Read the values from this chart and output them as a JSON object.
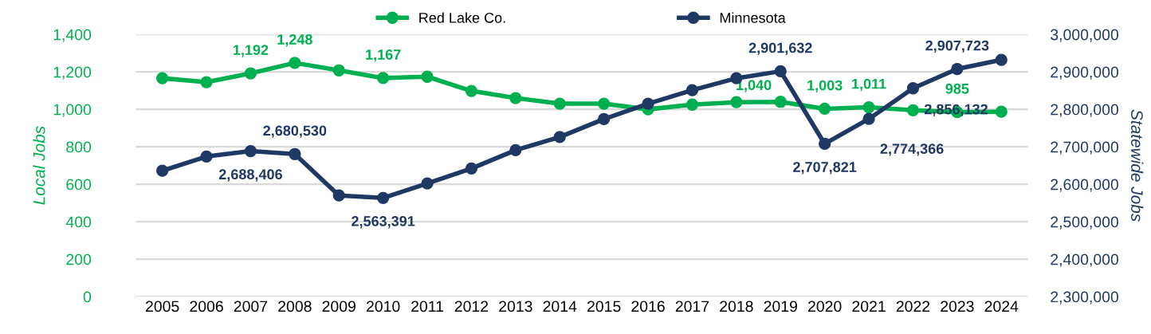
{
  "chart_data": {
    "type": "line",
    "categories": [
      "2005",
      "2006",
      "2007",
      "2008",
      "2009",
      "2010",
      "2011",
      "2012",
      "2013",
      "2014",
      "2015",
      "2016",
      "2017",
      "2018",
      "2019",
      "2020",
      "2021",
      "2022",
      "2023",
      "2024"
    ],
    "series": [
      {
        "name": "Red Lake Co.",
        "color": "#00b050",
        "values": [
          1166,
          1145,
          1192,
          1248,
          1208,
          1167,
          1174,
          1098,
          1060,
          1030,
          1030,
          1000,
          1025,
          1038,
          1040,
          1003,
          1011,
          995,
          985,
          987
        ],
        "value_labels": [
          null,
          null,
          "1,192",
          "1,248",
          null,
          "1,167",
          null,
          null,
          null,
          null,
          null,
          null,
          null,
          null,
          "1,040",
          "1,003",
          "1,011",
          null,
          "985",
          null
        ]
      },
      {
        "name": "Minnesota",
        "color": "#203864",
        "axis": "y2",
        "values": [
          2636000,
          2674000,
          2688406,
          2680530,
          2570000,
          2563391,
          2602000,
          2642000,
          2691000,
          2726000,
          2774000,
          2815000,
          2851000,
          2883000,
          2901632,
          2707821,
          2774366,
          2856132,
          2907723,
          2932000
        ],
        "value_labels": [
          null,
          null,
          "2,688,406",
          "2,680,530",
          null,
          "2,563,391",
          null,
          null,
          null,
          null,
          null,
          null,
          null,
          null,
          "2,901,632",
          "2,707,821",
          "2,774,366",
          "2,856,132",
          "2,907,723",
          null
        ]
      }
    ],
    "ylabel": "Local Jobs",
    "y2label": "Statewide Jobs",
    "ylim": [
      0,
      1400
    ],
    "yticks": [
      {
        "value": 0,
        "label": "0"
      },
      {
        "value": 200,
        "label": "200"
      },
      {
        "value": 400,
        "label": "400"
      },
      {
        "value": 600,
        "label": "600"
      },
      {
        "value": 800,
        "label": "800"
      },
      {
        "value": 1000,
        "label": "1,000"
      },
      {
        "value": 1200,
        "label": "1,200"
      },
      {
        "value": 1400,
        "label": "1,400"
      }
    ],
    "y2lim": [
      2300000,
      3000000
    ],
    "y2ticks": [
      {
        "value": 2300000,
        "label": "2,300,000"
      },
      {
        "value": 2400000,
        "label": "2,400,000"
      },
      {
        "value": 2500000,
        "label": "2,500,000"
      },
      {
        "value": 2600000,
        "label": "2,600,000"
      },
      {
        "value": 2700000,
        "label": "2,700,000"
      },
      {
        "value": 2800000,
        "label": "2,800,000"
      },
      {
        "value": 2900000,
        "label": "2,900,000"
      },
      {
        "value": 3000000,
        "label": "3,000,000"
      }
    ],
    "grid": "y",
    "legend": "top",
    "marker": "circle",
    "line_style": "solid"
  }
}
